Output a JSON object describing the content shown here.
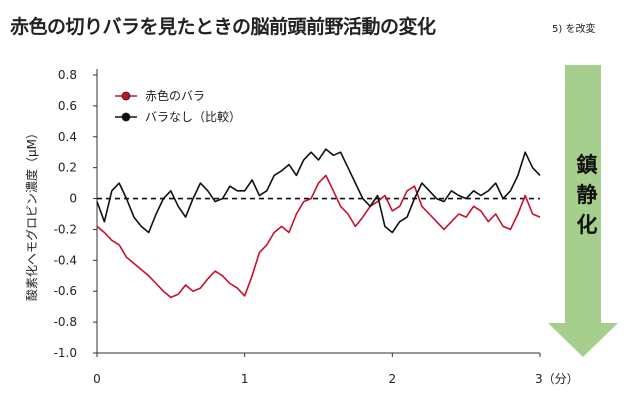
{
  "header": {
    "title": "赤色の切りバラを見たときの脳前頭前野活動の変化",
    "note": "5) を改変"
  },
  "arrow": {
    "label": "鎮静化",
    "color": "#a6cf8e"
  },
  "colors": {
    "red_series": "#c8102e",
    "black_series": "#111111",
    "baseline": "#111111"
  },
  "chart_data": {
    "type": "line",
    "xlabel": "",
    "ylabel": "酸素化ヘモグロビン濃度（μM）",
    "xlim": [
      0,
      3
    ],
    "ylim": [
      -1.0,
      0.8
    ],
    "x_ticks": [
      0,
      1,
      2,
      3
    ],
    "x_tick_labels": [
      "0",
      "1",
      "2",
      "3（分）"
    ],
    "y_ticks": [
      0.8,
      0.6,
      0.4,
      0.2,
      0,
      -0.2,
      -0.4,
      -0.6,
      -0.8,
      -1.0
    ],
    "y_tick_labels": [
      "0.8",
      "0.6",
      "0.4",
      "0.2",
      "0",
      "-0.2",
      "-0.4",
      "-0.6",
      "-0.8",
      "-1.0"
    ],
    "grid": false,
    "legend_position": "top-left",
    "reference_line": {
      "y": 0,
      "style": "dashed"
    },
    "series": [
      {
        "name": "赤色のバラ",
        "color": "#c8102e",
        "x": [
          0,
          0.05,
          0.1,
          0.15,
          0.2,
          0.25,
          0.3,
          0.35,
          0.4,
          0.45,
          0.5,
          0.55,
          0.6,
          0.65,
          0.7,
          0.75,
          0.8,
          0.85,
          0.9,
          0.95,
          1.0,
          1.05,
          1.1,
          1.15,
          1.2,
          1.25,
          1.3,
          1.35,
          1.4,
          1.45,
          1.5,
          1.55,
          1.6,
          1.65,
          1.7,
          1.75,
          1.8,
          1.85,
          1.9,
          1.95,
          2.0,
          2.05,
          2.1,
          2.15,
          2.2,
          2.25,
          2.3,
          2.35,
          2.4,
          2.45,
          2.5,
          2.55,
          2.6,
          2.65,
          2.7,
          2.75,
          2.8,
          2.85,
          2.9,
          2.95,
          3.0
        ],
        "values": [
          -0.18,
          -0.22,
          -0.27,
          -0.3,
          -0.38,
          -0.42,
          -0.46,
          -0.5,
          -0.55,
          -0.6,
          -0.64,
          -0.62,
          -0.56,
          -0.6,
          -0.58,
          -0.52,
          -0.47,
          -0.5,
          -0.55,
          -0.58,
          -0.63,
          -0.5,
          -0.35,
          -0.3,
          -0.22,
          -0.18,
          -0.22,
          -0.1,
          -0.02,
          0.0,
          0.1,
          0.15,
          0.05,
          -0.05,
          -0.1,
          -0.18,
          -0.12,
          -0.05,
          -0.02,
          0.02,
          -0.08,
          -0.05,
          0.05,
          0.08,
          -0.05,
          -0.1,
          -0.15,
          -0.2,
          -0.15,
          -0.1,
          -0.12,
          -0.05,
          -0.08,
          -0.15,
          -0.1,
          -0.18,
          -0.2,
          -0.1,
          0.02,
          -0.1,
          -0.12
        ]
      },
      {
        "name": "バラなし（比較）",
        "color": "#111111",
        "x": [
          0,
          0.05,
          0.1,
          0.15,
          0.2,
          0.25,
          0.3,
          0.35,
          0.4,
          0.45,
          0.5,
          0.55,
          0.6,
          0.65,
          0.7,
          0.75,
          0.8,
          0.85,
          0.9,
          0.95,
          1.0,
          1.05,
          1.1,
          1.15,
          1.2,
          1.25,
          1.3,
          1.35,
          1.4,
          1.45,
          1.5,
          1.55,
          1.6,
          1.65,
          1.7,
          1.75,
          1.8,
          1.85,
          1.9,
          1.95,
          2.0,
          2.05,
          2.1,
          2.15,
          2.2,
          2.25,
          2.3,
          2.35,
          2.4,
          2.45,
          2.5,
          2.55,
          2.6,
          2.65,
          2.7,
          2.75,
          2.8,
          2.85,
          2.9,
          2.95,
          3.0
        ],
        "values": [
          -0.02,
          -0.15,
          0.05,
          0.1,
          0.0,
          -0.12,
          -0.18,
          -0.22,
          -0.1,
          0.0,
          0.05,
          -0.05,
          -0.12,
          0.0,
          0.1,
          0.05,
          -0.02,
          0.0,
          0.08,
          0.05,
          0.05,
          0.12,
          0.02,
          0.05,
          0.15,
          0.18,
          0.22,
          0.15,
          0.25,
          0.3,
          0.25,
          0.32,
          0.28,
          0.3,
          0.2,
          0.1,
          0.0,
          -0.05,
          0.02,
          -0.18,
          -0.22,
          -0.15,
          -0.12,
          0.0,
          0.1,
          0.05,
          0.0,
          -0.02,
          0.05,
          0.02,
          0.0,
          0.05,
          0.02,
          0.05,
          0.1,
          0.0,
          0.05,
          0.15,
          0.3,
          0.2,
          0.15
        ]
      }
    ]
  }
}
